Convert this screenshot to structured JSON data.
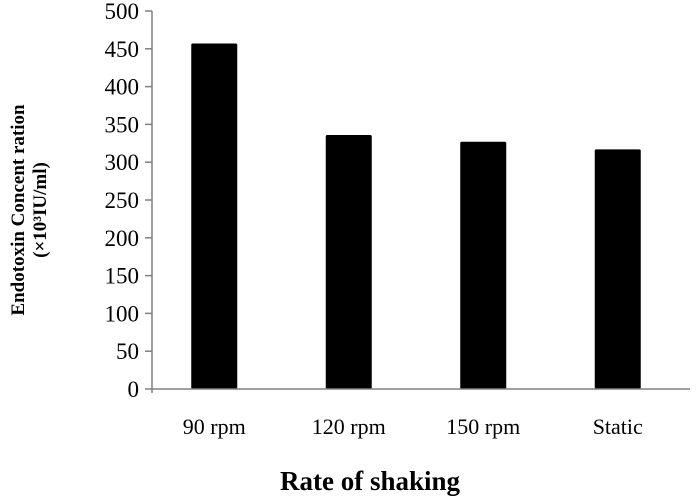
{
  "chart_data": {
    "type": "bar",
    "categories": [
      "90 rpm",
      "120 rpm",
      "150 rpm",
      "Static"
    ],
    "values": [
      457,
      336,
      327,
      317
    ],
    "title": "",
    "xlabel": "Rate of shaking",
    "ylabel_line1": "Endotoxin Concent ration",
    "ylabel_line2": "(×10³IU/ml)",
    "ylim": [
      0,
      500
    ],
    "yticks": [
      0,
      50,
      100,
      150,
      200,
      250,
      300,
      350,
      400,
      450,
      500
    ],
    "grid": false,
    "legend": "none",
    "bar_color": "#000000",
    "axis_color": "#808080"
  }
}
